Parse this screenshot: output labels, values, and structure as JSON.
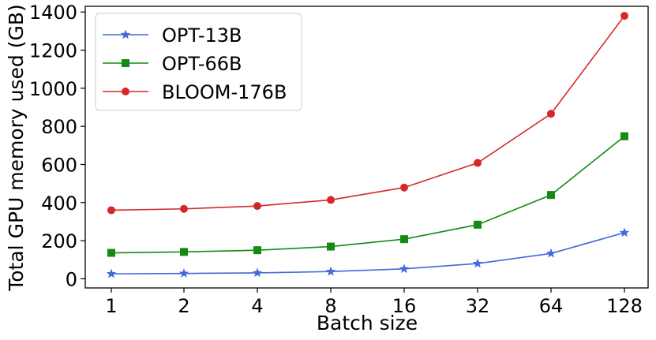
{
  "chart_data": {
    "type": "line",
    "categories": [
      "1",
      "2",
      "4",
      "8",
      "16",
      "32",
      "64",
      "128"
    ],
    "xlabel": "Batch size",
    "ylabel": "Total GPU memory used (GB)",
    "yticks": [
      "0",
      "200",
      "400",
      "600",
      "800",
      "1000",
      "1200",
      "1400"
    ],
    "ylim": [
      -48,
      1430
    ],
    "grid": false,
    "legend_position": "top-left",
    "series": [
      {
        "name": "OPT-13B",
        "color": "#4169d9",
        "marker": "star",
        "values": [
          26,
          28,
          31,
          38,
          52,
          80,
          133,
          242
        ]
      },
      {
        "name": "OPT-66B",
        "color": "#138a13",
        "marker": "square",
        "values": [
          136,
          141,
          150,
          169,
          208,
          284,
          440,
          748
        ]
      },
      {
        "name": "BLOOM-176B",
        "color": "#d62728",
        "marker": "circle",
        "values": [
          360,
          367,
          382,
          414,
          479,
          608,
          866,
          1380
        ]
      }
    ]
  }
}
